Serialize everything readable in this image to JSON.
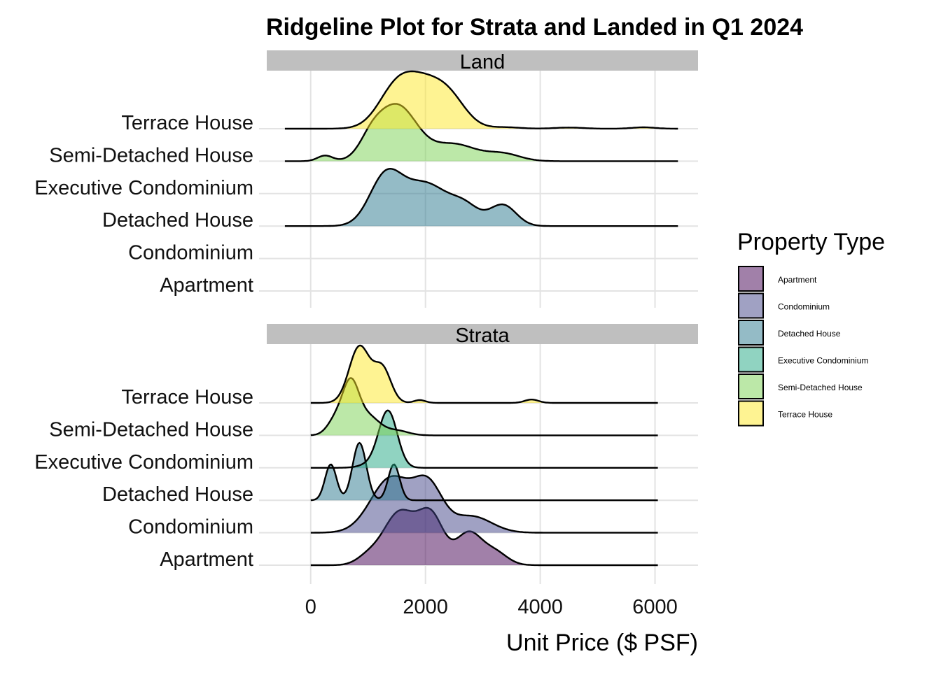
{
  "chart_data": {
    "type": "ridgeline",
    "title": "Ridgeline Plot for Strata and Landed in Q1 2024",
    "xlabel": "Unit Price ($ PSF)",
    "ylabel": "",
    "xlim": [
      -900,
      6750
    ],
    "x_ticks": [
      0,
      2000,
      4000,
      6000
    ],
    "x_tick_labels": [
      "0",
      "2000",
      "4000",
      "6000"
    ],
    "grid": true,
    "legend": {
      "title": "Property Type",
      "position": "right",
      "items": [
        {
          "label": "Apartment",
          "color": "#440154"
        },
        {
          "label": "Condominium",
          "color": "#414487"
        },
        {
          "label": "Detached House",
          "color": "#2A788E"
        },
        {
          "label": "Executive Condominium",
          "color": "#22A884"
        },
        {
          "label": "Semi-Detached House",
          "color": "#7AD151"
        },
        {
          "label": "Terrace House",
          "color": "#FDE725"
        }
      ]
    },
    "fill_opacity": 0.5,
    "categories": [
      "Apartment",
      "Condominium",
      "Detached House",
      "Executive Condominium",
      "Semi-Detached House",
      "Terrace House"
    ],
    "facets": [
      {
        "name": "Land",
        "series": [
          {
            "name": "Terrace House",
            "color": "#FDE725",
            "range": [
              -450,
              6400
            ],
            "peaks": [
              [
                1950,
                1.0,
                420
              ],
              [
                1450,
                0.55,
                300
              ],
              [
                2450,
                0.35,
                280
              ],
              [
                3400,
                0.03,
                250
              ],
              [
                4500,
                0.025,
                250
              ],
              [
                5800,
                0.03,
                200
              ]
            ]
          },
          {
            "name": "Semi-Detached House",
            "color": "#7AD151",
            "range": [
              -450,
              6400
            ],
            "peaks": [
              [
                1500,
                1.0,
                350
              ],
              [
                1050,
                0.25,
                200
              ],
              [
                2500,
                0.3,
                380
              ],
              [
                3350,
                0.13,
                300
              ],
              [
                250,
                0.1,
                130
              ]
            ]
          },
          {
            "name": "Executive Condominium",
            "color": "#22A884",
            "range": null,
            "peaks": []
          },
          {
            "name": "Detached House",
            "color": "#2A788E",
            "range": [
              -450,
              6400
            ],
            "peaks": [
              [
                1300,
                1.0,
                280
              ],
              [
                2000,
                0.9,
                400
              ],
              [
                2700,
                0.35,
                250
              ],
              [
                3350,
                0.45,
                230
              ]
            ]
          },
          {
            "name": "Condominium",
            "color": "#414487",
            "range": null,
            "peaks": []
          },
          {
            "name": "Apartment",
            "color": "#440154",
            "range": null,
            "peaks": []
          }
        ]
      },
      {
        "name": "Strata",
        "series": [
          {
            "name": "Terrace House",
            "color": "#FDE725",
            "range": [
              0,
              6050
            ],
            "peaks": [
              [
                850,
                1.0,
                180
              ],
              [
                1250,
                0.6,
                150
              ],
              [
                1900,
                0.05,
                100
              ],
              [
                3850,
                0.06,
                120
              ]
            ]
          },
          {
            "name": "Semi-Detached House",
            "color": "#7AD151",
            "range": [
              0,
              6050
            ],
            "peaks": [
              [
                700,
                1.0,
                140
              ],
              [
                450,
                0.35,
                150
              ],
              [
                1000,
                0.4,
                200
              ],
              [
                1500,
                0.1,
                200
              ]
            ]
          },
          {
            "name": "Executive Condominium",
            "color": "#22A884",
            "range": [
              0,
              6050
            ],
            "peaks": [
              [
                1350,
                1.0,
                160
              ],
              [
                1100,
                0.08,
                200
              ]
            ]
          },
          {
            "name": "Detached House",
            "color": "#2A788E",
            "range": [
              0,
              6050
            ],
            "peaks": [
              [
                350,
                0.5,
                100
              ],
              [
                850,
                0.8,
                120
              ],
              [
                1450,
                0.5,
                100
              ]
            ]
          },
          {
            "name": "Condominium",
            "color": "#414487",
            "range": [
              0,
              6050
            ],
            "peaks": [
              [
                1400,
                1.0,
                350
              ],
              [
                2050,
                0.8,
                250
              ],
              [
                2800,
                0.3,
                350
              ]
            ]
          },
          {
            "name": "Apartment",
            "color": "#440154",
            "range": [
              0,
              6050
            ],
            "peaks": [
              [
                1550,
                1.0,
                280
              ],
              [
                2100,
                0.9,
                220
              ],
              [
                2750,
                0.6,
                220
              ],
              [
                3200,
                0.25,
                220
              ],
              [
                1000,
                0.15,
                200
              ]
            ]
          }
        ]
      }
    ]
  }
}
